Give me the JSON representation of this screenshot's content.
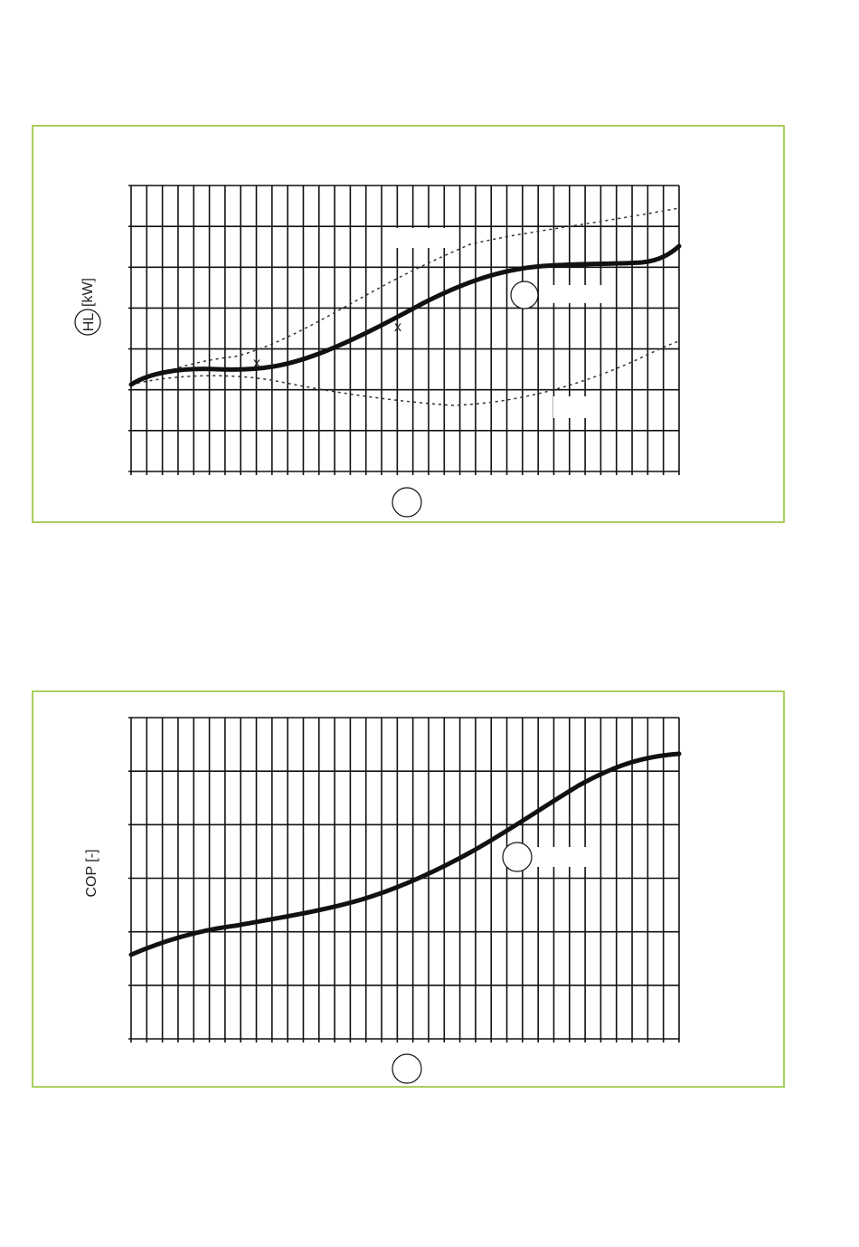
{
  "charts": [
    {
      "y_label": "HL",
      "y_unit": "[kW]"
    },
    {
      "y_label": "COP [-]"
    }
  ]
}
